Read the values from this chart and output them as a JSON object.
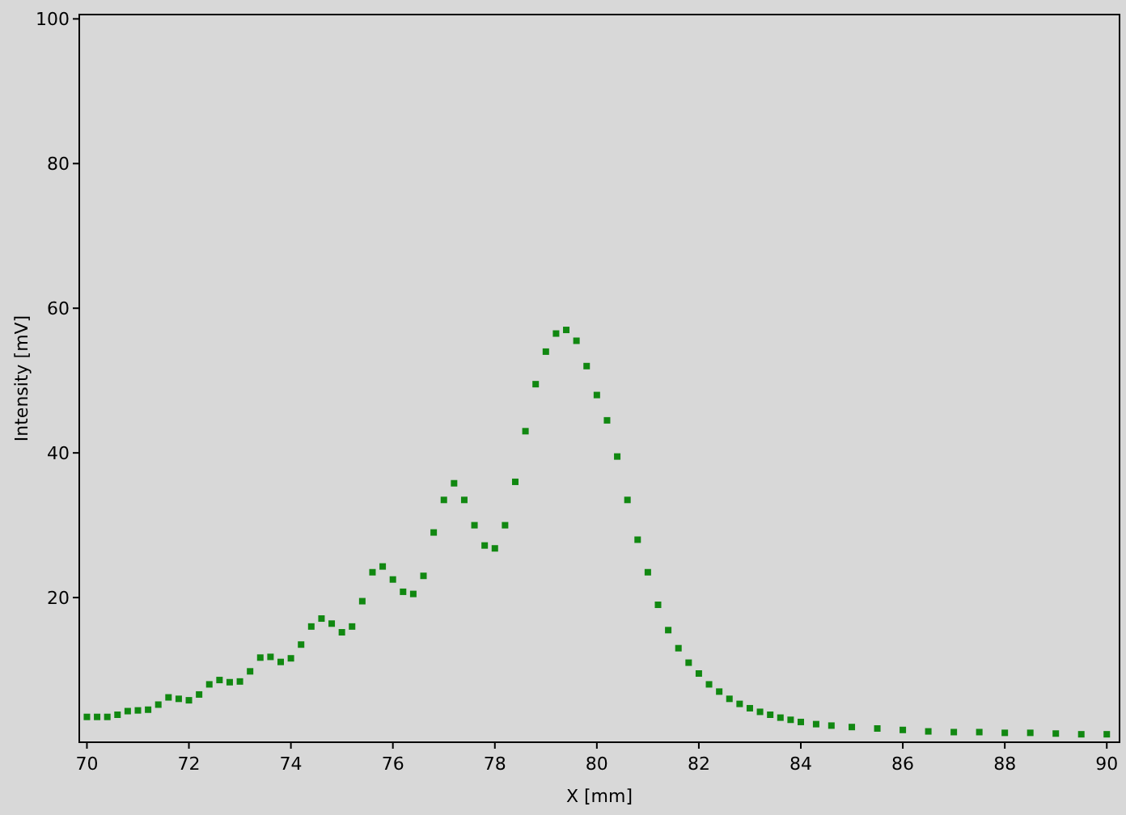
{
  "chart_data": {
    "type": "scatter",
    "xlabel": "X [mm]",
    "ylabel": "Intensity [mV]",
    "xlim": [
      69.85,
      90.25
    ],
    "ylim": [
      0,
      100.6
    ],
    "xticks": [
      70,
      72,
      74,
      76,
      78,
      80,
      82,
      84,
      86,
      88,
      90
    ],
    "yticks": [
      {
        "value": 20,
        "label": "20"
      },
      {
        "value": 40,
        "label": "40"
      },
      {
        "value": 60,
        "label": "60"
      },
      {
        "value": 80,
        "label": "80"
      },
      {
        "value": 100,
        "label": "100"
      }
    ],
    "grid": false,
    "marker": "square",
    "series": [
      {
        "color": "#118811",
        "x": [
          70.0,
          70.2,
          70.4,
          70.6,
          70.8,
          71.0,
          71.2,
          71.4,
          71.6,
          71.8,
          72.0,
          72.2,
          72.4,
          72.6,
          72.8,
          73.0,
          73.2,
          73.4,
          73.6,
          73.8,
          74.0,
          74.2,
          74.4,
          74.6,
          74.8,
          75.0,
          75.2,
          75.4,
          75.6,
          75.8,
          76.0,
          76.2,
          76.4,
          76.6,
          76.8,
          77.0,
          77.2,
          77.4,
          77.6,
          77.8,
          78.0,
          78.2,
          78.4,
          78.6,
          78.8,
          79.0,
          79.2,
          79.4,
          79.6,
          79.8,
          80.0,
          80.2,
          80.4,
          80.6,
          80.8,
          81.0,
          81.2,
          81.4,
          81.6,
          81.8,
          82.0,
          82.2,
          82.4,
          82.6,
          82.8,
          83.0,
          83.2,
          83.4,
          83.6,
          83.8,
          84.0,
          84.3,
          84.6,
          85.0,
          85.5,
          86.0,
          86.5,
          87.0,
          87.5,
          88.0,
          88.5,
          89.0,
          89.5,
          90.0
        ],
        "values": [
          3.5,
          3.5,
          3.5,
          3.8,
          4.3,
          4.4,
          4.5,
          5.2,
          6.2,
          6.0,
          5.8,
          6.6,
          8.0,
          8.6,
          8.3,
          8.4,
          9.8,
          11.7,
          11.8,
          11.1,
          11.6,
          13.5,
          16.0,
          17.1,
          16.4,
          15.2,
          16.0,
          19.5,
          23.5,
          24.3,
          22.5,
          20.8,
          20.5,
          23.0,
          29.0,
          33.5,
          35.8,
          33.5,
          30.0,
          27.2,
          26.8,
          30.0,
          36.0,
          43.0,
          49.5,
          54.0,
          56.5,
          57.0,
          55.5,
          52.0,
          48.0,
          44.5,
          39.5,
          33.5,
          28.0,
          23.5,
          19.0,
          15.5,
          13.0,
          11.0,
          9.5,
          8.0,
          7.0,
          6.0,
          5.3,
          4.7,
          4.2,
          3.8,
          3.4,
          3.1,
          2.8,
          2.5,
          2.3,
          2.1,
          1.9,
          1.7,
          1.5,
          1.4,
          1.4,
          1.3,
          1.3,
          1.2,
          1.1,
          1.1
        ]
      }
    ]
  }
}
